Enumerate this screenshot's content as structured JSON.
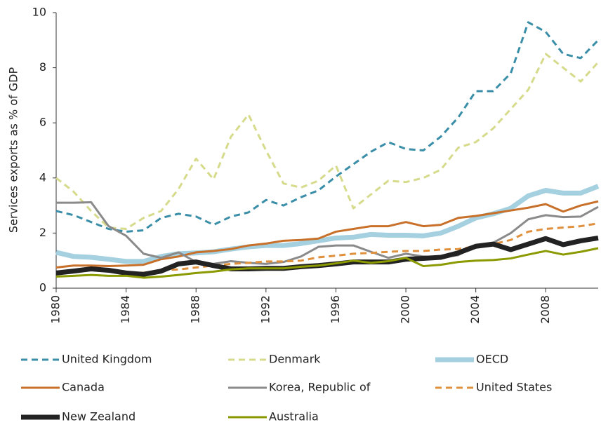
{
  "chart_data": {
    "type": "line",
    "y_label": "Services exports as % of GDP",
    "x": [
      1980,
      1981,
      1982,
      1983,
      1984,
      1985,
      1986,
      1987,
      1988,
      1989,
      1990,
      1991,
      1992,
      1993,
      1994,
      1995,
      1996,
      1997,
      1998,
      1999,
      2000,
      2001,
      2002,
      2003,
      2004,
      2005,
      2006,
      2007,
      2008,
      2009,
      2010,
      2011
    ],
    "xlim": [
      1980,
      2011
    ],
    "xticks": [
      1980,
      1984,
      1988,
      1992,
      1996,
      2000,
      2004,
      2008
    ],
    "ylim": [
      0,
      10
    ],
    "yticks": [
      0,
      2,
      4,
      6,
      8,
      10
    ],
    "series": [
      {
        "name": "United Kingdom",
        "color": "#3a8ea8",
        "dash": true,
        "thick": false,
        "values": [
          2.8,
          2.65,
          2.4,
          2.15,
          2.05,
          2.1,
          2.55,
          2.7,
          2.6,
          2.3,
          2.6,
          2.75,
          3.2,
          3.0,
          3.3,
          3.55,
          4.05,
          4.5,
          4.95,
          5.3,
          5.05,
          5.0,
          5.5,
          6.2,
          7.15,
          7.15,
          7.8,
          9.65,
          9.3,
          8.5,
          8.35,
          9.0
        ]
      },
      {
        "name": "Denmark",
        "color": "#d6db8c",
        "dash": true,
        "thick": false,
        "values": [
          4.0,
          3.5,
          2.8,
          2.2,
          2.15,
          2.55,
          2.8,
          3.6,
          4.7,
          3.95,
          5.5,
          6.3,
          5.0,
          3.8,
          3.65,
          3.9,
          4.45,
          2.9,
          3.4,
          3.9,
          3.85,
          4.0,
          4.3,
          5.1,
          5.3,
          5.8,
          6.5,
          7.2,
          8.5,
          8.0,
          7.5,
          8.2
        ]
      },
      {
        "name": "OECD",
        "color": "#a5d0e0",
        "dash": false,
        "thick": true,
        "values": [
          1.3,
          1.15,
          1.12,
          1.05,
          0.97,
          0.97,
          1.15,
          1.25,
          1.28,
          1.32,
          1.42,
          1.5,
          1.55,
          1.55,
          1.62,
          1.72,
          1.82,
          1.85,
          1.95,
          1.92,
          1.92,
          1.9,
          2.0,
          2.25,
          2.55,
          2.7,
          2.9,
          3.35,
          3.55,
          3.45,
          3.45,
          3.7
        ]
      },
      {
        "name": "Canada",
        "color": "#c8702a",
        "dash": false,
        "thick": false,
        "values": [
          0.75,
          0.82,
          0.82,
          0.8,
          0.82,
          0.85,
          1.05,
          1.15,
          1.3,
          1.35,
          1.42,
          1.55,
          1.62,
          1.72,
          1.75,
          1.8,
          2.05,
          2.15,
          2.25,
          2.25,
          2.4,
          2.25,
          2.3,
          2.55,
          2.62,
          2.72,
          2.82,
          2.92,
          3.05,
          2.78,
          3.0,
          3.15
        ]
      },
      {
        "name": "Korea, Republic of",
        "color": "#8a8a8a",
        "dash": false,
        "thick": false,
        "values": [
          3.1,
          3.1,
          3.12,
          2.25,
          1.9,
          1.25,
          1.1,
          1.3,
          0.95,
          0.88,
          0.98,
          0.92,
          0.88,
          0.95,
          1.15,
          1.5,
          1.55,
          1.55,
          1.32,
          1.1,
          1.25,
          1.15,
          1.12,
          1.2,
          1.55,
          1.65,
          2.0,
          2.5,
          2.65,
          2.58,
          2.6,
          2.95
        ]
      },
      {
        "name": "United States",
        "color": "#e0903c",
        "dash": true,
        "thick": false,
        "values": [
          0.6,
          0.62,
          0.68,
          0.62,
          0.58,
          0.56,
          0.65,
          0.68,
          0.75,
          0.82,
          0.88,
          0.92,
          0.97,
          0.97,
          1.0,
          1.12,
          1.18,
          1.25,
          1.28,
          1.32,
          1.35,
          1.35,
          1.4,
          1.42,
          1.52,
          1.6,
          1.75,
          2.05,
          2.15,
          2.2,
          2.25,
          2.35
        ]
      },
      {
        "name": "New Zealand",
        "color": "#222222",
        "dash": false,
        "thick": true,
        "values": [
          0.55,
          0.62,
          0.7,
          0.65,
          0.55,
          0.5,
          0.62,
          0.88,
          0.95,
          0.82,
          0.7,
          0.7,
          0.72,
          0.72,
          0.78,
          0.82,
          0.88,
          0.95,
          0.95,
          0.95,
          1.05,
          1.08,
          1.12,
          1.28,
          1.52,
          1.6,
          1.4,
          1.6,
          1.8,
          1.58,
          1.72,
          1.82
        ]
      },
      {
        "name": "Australia",
        "color": "#8a9a00",
        "dash": false,
        "thick": false,
        "values": [
          0.42,
          0.45,
          0.48,
          0.45,
          0.45,
          0.38,
          0.42,
          0.48,
          0.55,
          0.6,
          0.68,
          0.72,
          0.72,
          0.72,
          0.78,
          0.82,
          0.9,
          1.0,
          0.92,
          0.98,
          1.1,
          0.8,
          0.85,
          0.95,
          1.0,
          1.02,
          1.08,
          1.22,
          1.35,
          1.22,
          1.32,
          1.45
        ]
      }
    ]
  }
}
